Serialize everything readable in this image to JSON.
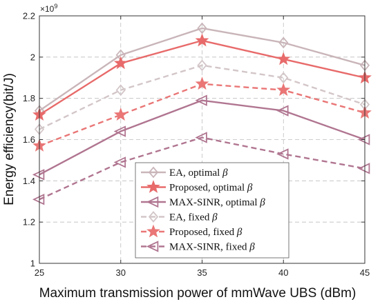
{
  "chart_data": {
    "type": "line",
    "title": "",
    "xlabel": "Maximum transmission power of mmWave UBS (dBm)",
    "ylabel": "Energy efficiency(bit/J)",
    "y_exponent_label": "×10",
    "y_exponent_power": "9",
    "x": [
      25,
      30,
      35,
      40,
      45
    ],
    "x_ticks": [
      "25",
      "30",
      "35",
      "40",
      "45"
    ],
    "y_ticks": [
      "1",
      "1.2",
      "1.4",
      "1.6",
      "1.8",
      "2",
      "2.2"
    ],
    "y_tick_values": [
      1,
      1.2,
      1.4,
      1.6,
      1.8,
      2,
      2.2
    ],
    "xlim": [
      25,
      45
    ],
    "ylim": [
      1,
      2.2
    ],
    "grid": true,
    "legend_position": "bottom-center",
    "series": [
      {
        "label_text": "EA, optimal",
        "values": [
          1.74,
          2.01,
          2.14,
          2.07,
          1.96
        ],
        "color": "#c9b5b9",
        "dash": "solid",
        "marker": "diamond"
      },
      {
        "label_text": "Proposed, optimal",
        "values": [
          1.72,
          1.97,
          2.08,
          1.99,
          1.9
        ],
        "color": "#e86a6a",
        "dash": "solid",
        "marker": "star"
      },
      {
        "label_text": "MAX-SINR, optimal",
        "values": [
          1.43,
          1.64,
          1.79,
          1.74,
          1.6
        ],
        "color": "#b07590",
        "dash": "solid",
        "marker": "triangle-left"
      },
      {
        "label_text": "EA, fixed",
        "values": [
          1.65,
          1.84,
          1.96,
          1.9,
          1.77
        ],
        "color": "#d3c6c8",
        "dash": "dashed",
        "marker": "diamond"
      },
      {
        "label_text": "Proposed, fixed",
        "values": [
          1.57,
          1.72,
          1.87,
          1.84,
          1.73
        ],
        "color": "#ea7676",
        "dash": "dashed",
        "marker": "star"
      },
      {
        "label_text": "MAX-SINR, fixed",
        "values": [
          1.31,
          1.49,
          1.61,
          1.53,
          1.46
        ],
        "color": "#b07590",
        "dash": "dashed",
        "marker": "triangle-left"
      }
    ],
    "legend_symbol": "β"
  }
}
